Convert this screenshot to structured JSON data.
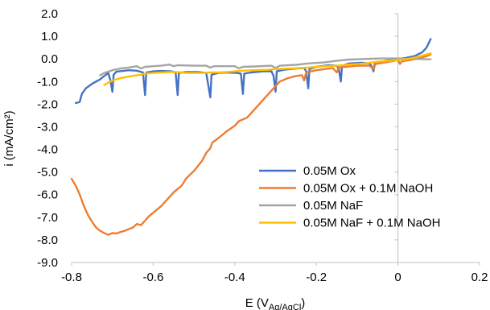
{
  "chart_data": {
    "type": "line",
    "xlabel": "E (V",
    "xlabel_sub": "Ag/AgCl",
    "xlabel_close": ")",
    "ylabel": "i (mA/cm²)",
    "xlim": [
      -0.8,
      0.2
    ],
    "ylim": [
      -9.0,
      2.0
    ],
    "x_ticks": [
      -0.8,
      -0.6,
      -0.4,
      -0.2,
      0,
      0.2
    ],
    "x_tick_labels": [
      "-0.8",
      "-0.6",
      "-0.4",
      "-0.2",
      "0",
      "0.2"
    ],
    "y_ticks": [
      2,
      1,
      0,
      -1,
      -2,
      -3,
      -4,
      -5,
      -6,
      -7,
      -8,
      -9
    ],
    "y_tick_labels": [
      "2.0",
      "1.0",
      "0.0",
      "-1.0",
      "-2.0",
      "-3.0",
      "-4.0",
      "-5.0",
      "-6.0",
      "-7.0",
      "-8.0",
      "-9.0"
    ],
    "grid": false,
    "legend_position": "bottom-right",
    "series": [
      {
        "name": "0.05M Ox",
        "color": "#4472C4",
        "points": [
          [
            -0.79,
            -1.95
          ],
          [
            -0.78,
            -1.9
          ],
          [
            -0.775,
            -1.55
          ],
          [
            -0.765,
            -1.3
          ],
          [
            -0.75,
            -1.1
          ],
          [
            -0.74,
            -1.0
          ],
          [
            -0.73,
            -0.9
          ],
          [
            -0.72,
            -0.75
          ],
          [
            -0.71,
            -0.62
          ],
          [
            -0.705,
            -0.95
          ],
          [
            -0.7,
            -1.45
          ],
          [
            -0.697,
            -0.7
          ],
          [
            -0.69,
            -0.56
          ],
          [
            -0.66,
            -0.5
          ],
          [
            -0.64,
            -0.52
          ],
          [
            -0.625,
            -0.6
          ],
          [
            -0.62,
            -1.6
          ],
          [
            -0.617,
            -0.6
          ],
          [
            -0.6,
            -0.55
          ],
          [
            -0.58,
            -0.53
          ],
          [
            -0.555,
            -0.55
          ],
          [
            -0.545,
            -0.6
          ],
          [
            -0.54,
            -1.6
          ],
          [
            -0.537,
            -0.62
          ],
          [
            -0.52,
            -0.58
          ],
          [
            -0.49,
            -0.58
          ],
          [
            -0.47,
            -0.62
          ],
          [
            -0.46,
            -1.7
          ],
          [
            -0.457,
            -0.7
          ],
          [
            -0.44,
            -0.62
          ],
          [
            -0.42,
            -0.6
          ],
          [
            -0.395,
            -0.62
          ],
          [
            -0.385,
            -0.65
          ],
          [
            -0.38,
            -1.55
          ],
          [
            -0.377,
            -0.65
          ],
          [
            -0.36,
            -0.6
          ],
          [
            -0.33,
            -0.55
          ],
          [
            -0.31,
            -0.55
          ],
          [
            -0.305,
            -0.75
          ],
          [
            -0.3,
            -1.45
          ],
          [
            -0.297,
            -0.55
          ],
          [
            -0.28,
            -0.48
          ],
          [
            -0.25,
            -0.42
          ],
          [
            -0.23,
            -0.4
          ],
          [
            -0.225,
            -0.55
          ],
          [
            -0.22,
            -1.3
          ],
          [
            -0.217,
            -0.45
          ],
          [
            -0.2,
            -0.35
          ],
          [
            -0.17,
            -0.28
          ],
          [
            -0.15,
            -0.3
          ],
          [
            -0.145,
            -0.45
          ],
          [
            -0.14,
            -1.0
          ],
          [
            -0.137,
            -0.3
          ],
          [
            -0.12,
            -0.2
          ],
          [
            -0.09,
            -0.17
          ],
          [
            -0.07,
            -0.2
          ],
          [
            -0.065,
            -0.3
          ],
          [
            -0.06,
            -0.55
          ],
          [
            -0.057,
            -0.22
          ],
          [
            -0.03,
            -0.08
          ],
          [
            0.0,
            0.0
          ],
          [
            0.02,
            0.05
          ],
          [
            0.04,
            0.12
          ],
          [
            0.06,
            0.3
          ],
          [
            0.07,
            0.5
          ],
          [
            0.08,
            0.88
          ]
        ]
      },
      {
        "name": "0.05M Ox + 0.1M NaOH",
        "color": "#ED7D31",
        "points": [
          [
            -0.8,
            -5.3
          ],
          [
            -0.79,
            -5.6
          ],
          [
            -0.78,
            -6.0
          ],
          [
            -0.77,
            -6.5
          ],
          [
            -0.76,
            -6.9
          ],
          [
            -0.75,
            -7.2
          ],
          [
            -0.74,
            -7.45
          ],
          [
            -0.73,
            -7.6
          ],
          [
            -0.72,
            -7.7
          ],
          [
            -0.71,
            -7.78
          ],
          [
            -0.7,
            -7.7
          ],
          [
            -0.69,
            -7.72
          ],
          [
            -0.68,
            -7.65
          ],
          [
            -0.67,
            -7.6
          ],
          [
            -0.65,
            -7.45
          ],
          [
            -0.64,
            -7.3
          ],
          [
            -0.63,
            -7.35
          ],
          [
            -0.62,
            -7.15
          ],
          [
            -0.61,
            -6.95
          ],
          [
            -0.6,
            -6.8
          ],
          [
            -0.58,
            -6.5
          ],
          [
            -0.56,
            -6.1
          ],
          [
            -0.55,
            -5.9
          ],
          [
            -0.54,
            -5.75
          ],
          [
            -0.53,
            -5.6
          ],
          [
            -0.52,
            -5.3
          ],
          [
            -0.5,
            -4.95
          ],
          [
            -0.48,
            -4.5
          ],
          [
            -0.47,
            -4.15
          ],
          [
            -0.46,
            -3.95
          ],
          [
            -0.455,
            -3.7
          ],
          [
            -0.44,
            -3.5
          ],
          [
            -0.42,
            -3.2
          ],
          [
            -0.4,
            -2.95
          ],
          [
            -0.39,
            -2.75
          ],
          [
            -0.37,
            -2.6
          ],
          [
            -0.36,
            -2.4
          ],
          [
            -0.34,
            -2.0
          ],
          [
            -0.32,
            -1.6
          ],
          [
            -0.3,
            -1.2
          ],
          [
            -0.29,
            -1.0
          ],
          [
            -0.27,
            -0.85
          ],
          [
            -0.25,
            -0.75
          ],
          [
            -0.235,
            -0.72
          ],
          [
            -0.23,
            -0.95
          ],
          [
            -0.225,
            -0.6
          ],
          [
            -0.2,
            -0.5
          ],
          [
            -0.16,
            -0.4
          ],
          [
            -0.15,
            -0.6
          ],
          [
            -0.145,
            -0.38
          ],
          [
            -0.1,
            -0.3
          ],
          [
            -0.07,
            -0.3
          ],
          [
            -0.06,
            -0.45
          ],
          [
            -0.055,
            -0.22
          ],
          [
            -0.02,
            -0.12
          ],
          [
            0.0,
            -0.05
          ],
          [
            0.005,
            -0.22
          ],
          [
            0.01,
            -0.1
          ],
          [
            0.03,
            -0.05
          ],
          [
            0.05,
            0.02
          ],
          [
            0.07,
            0.12
          ],
          [
            0.08,
            0.2
          ]
        ]
      },
      {
        "name": "0.05M NaF",
        "color": "#A5A5A5",
        "points": [
          [
            -0.73,
            -0.72
          ],
          [
            -0.72,
            -0.62
          ],
          [
            -0.7,
            -0.5
          ],
          [
            -0.68,
            -0.42
          ],
          [
            -0.66,
            -0.38
          ],
          [
            -0.64,
            -0.32
          ],
          [
            -0.63,
            -0.42
          ],
          [
            -0.62,
            -0.35
          ],
          [
            -0.6,
            -0.32
          ],
          [
            -0.58,
            -0.3
          ],
          [
            -0.56,
            -0.25
          ],
          [
            -0.55,
            -0.32
          ],
          [
            -0.54,
            -0.28
          ],
          [
            -0.5,
            -0.3
          ],
          [
            -0.47,
            -0.3
          ],
          [
            -0.46,
            -0.38
          ],
          [
            -0.45,
            -0.32
          ],
          [
            -0.4,
            -0.32
          ],
          [
            -0.39,
            -0.42
          ],
          [
            -0.38,
            -0.35
          ],
          [
            -0.35,
            -0.33
          ],
          [
            -0.31,
            -0.3
          ],
          [
            -0.3,
            -0.4
          ],
          [
            -0.29,
            -0.3
          ],
          [
            -0.25,
            -0.26
          ],
          [
            -0.22,
            -0.2
          ],
          [
            -0.18,
            -0.15
          ],
          [
            -0.15,
            -0.08
          ],
          [
            -0.12,
            -0.03
          ],
          [
            -0.08,
            0.0
          ],
          [
            -0.04,
            0.02
          ],
          [
            0.0,
            0.02
          ],
          [
            0.04,
            0.0
          ],
          [
            0.08,
            -0.02
          ]
        ]
      },
      {
        "name": "0.05M NaF + 0.1M NaOH",
        "color": "#FFC000",
        "points": [
          [
            -0.72,
            -1.15
          ],
          [
            -0.71,
            -1.05
          ],
          [
            -0.7,
            -0.95
          ],
          [
            -0.68,
            -0.85
          ],
          [
            -0.66,
            -0.78
          ],
          [
            -0.64,
            -0.72
          ],
          [
            -0.63,
            -0.7
          ],
          [
            -0.62,
            -0.65
          ],
          [
            -0.6,
            -0.62
          ],
          [
            -0.58,
            -0.6
          ],
          [
            -0.56,
            -0.58
          ],
          [
            -0.54,
            -0.58
          ],
          [
            -0.52,
            -0.62
          ],
          [
            -0.5,
            -0.62
          ],
          [
            -0.48,
            -0.62
          ],
          [
            -0.46,
            -0.6
          ],
          [
            -0.44,
            -0.6
          ],
          [
            -0.42,
            -0.58
          ],
          [
            -0.4,
            -0.55
          ],
          [
            -0.38,
            -0.52
          ],
          [
            -0.35,
            -0.5
          ],
          [
            -0.32,
            -0.48
          ],
          [
            -0.3,
            -0.45
          ],
          [
            -0.26,
            -0.42
          ],
          [
            -0.22,
            -0.38
          ],
          [
            -0.18,
            -0.32
          ],
          [
            -0.15,
            -0.3
          ],
          [
            -0.12,
            -0.25
          ],
          [
            -0.08,
            -0.2
          ],
          [
            -0.05,
            -0.12
          ],
          [
            -0.02,
            -0.08
          ],
          [
            0.0,
            -0.05
          ],
          [
            0.02,
            -0.02
          ],
          [
            0.05,
            0.1
          ],
          [
            0.08,
            0.25
          ]
        ]
      }
    ]
  }
}
